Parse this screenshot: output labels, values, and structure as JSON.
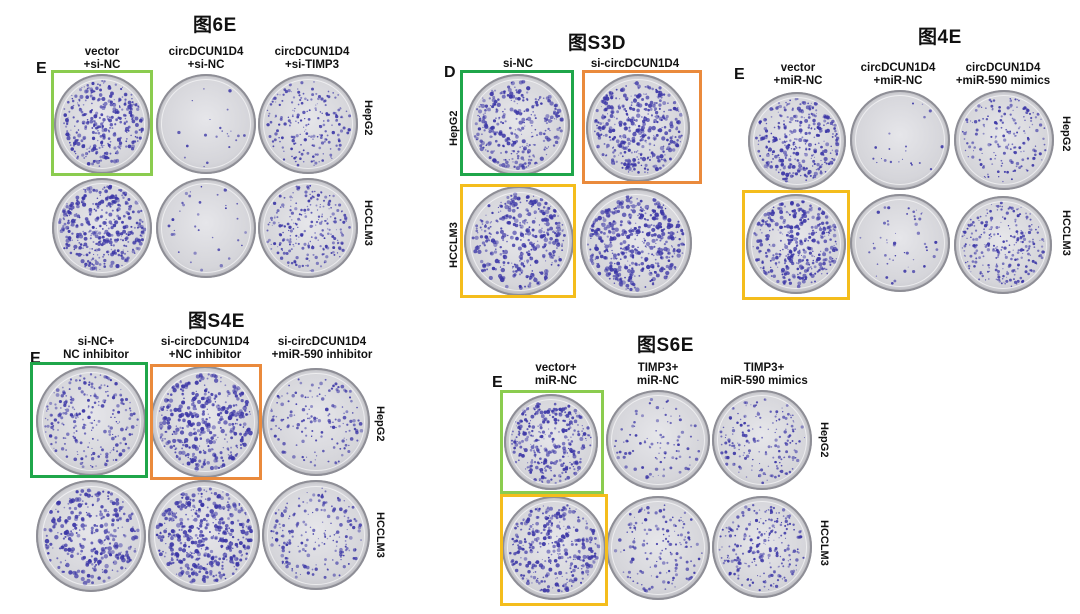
{
  "colors": {
    "light_green": "#8bcc4f",
    "dark_green": "#1fa64a",
    "orange": "#ea8a3c",
    "yellow": "#f4bd1c",
    "stain": "#3b36a6"
  },
  "panels": [
    {
      "key": "fig6e",
      "title": "图6E",
      "letter": "E",
      "columns": [
        "vector\n+si-NC",
        "circDCUN1D4\n+si-NC",
        "circDCUN1D4\n+si-TIMP3"
      ],
      "rows": [
        "HepG2",
        "HCCLM3"
      ],
      "density": [
        [
          0.75,
          0.03,
          0.45
        ],
        [
          0.85,
          0.06,
          0.55
        ]
      ]
    },
    {
      "key": "figs3d",
      "title": "图S3D",
      "letter": "D",
      "columns": [
        "si-NC",
        "si-circDCUN1D4"
      ],
      "rows": [
        "HepG2",
        "HCCLM3"
      ],
      "density": [
        [
          0.7,
          0.9
        ],
        [
          0.8,
          1.0
        ]
      ]
    },
    {
      "key": "fig4e",
      "title": "图4E",
      "letter": "E",
      "columns": [
        "vector\n+miR-NC",
        "circDCUN1D4\n+miR-NC",
        "circDCUN1D4\n+miR-590 mimics"
      ],
      "rows": [
        "HepG2",
        "HCCLM3"
      ],
      "density": [
        [
          0.75,
          0.03,
          0.4
        ],
        [
          0.85,
          0.1,
          0.6
        ]
      ]
    },
    {
      "key": "figs4e",
      "title": "图S4E",
      "letter": "E",
      "columns": [
        "si-NC+\nNC inhibitor",
        "si-circDCUN1D4\n+NC inhibitor",
        "si-circDCUN1D4\n+miR-590 inhibitor"
      ],
      "rows": [
        "HepG2",
        "HCCLM3"
      ],
      "density": [
        [
          0.55,
          0.9,
          0.35
        ],
        [
          0.7,
          1.0,
          0.45
        ]
      ]
    },
    {
      "key": "figs6e",
      "title": "图S6E",
      "letter": "E",
      "columns": [
        "vector+\nmiR-NC",
        "TIMP3+\nmiR-NC",
        "TIMP3+\nmiR-590 mimics"
      ],
      "rows": [
        "HepG2",
        "HCCLM3"
      ],
      "density": [
        [
          0.75,
          0.2,
          0.4
        ],
        [
          0.75,
          0.35,
          0.55
        ]
      ]
    }
  ]
}
